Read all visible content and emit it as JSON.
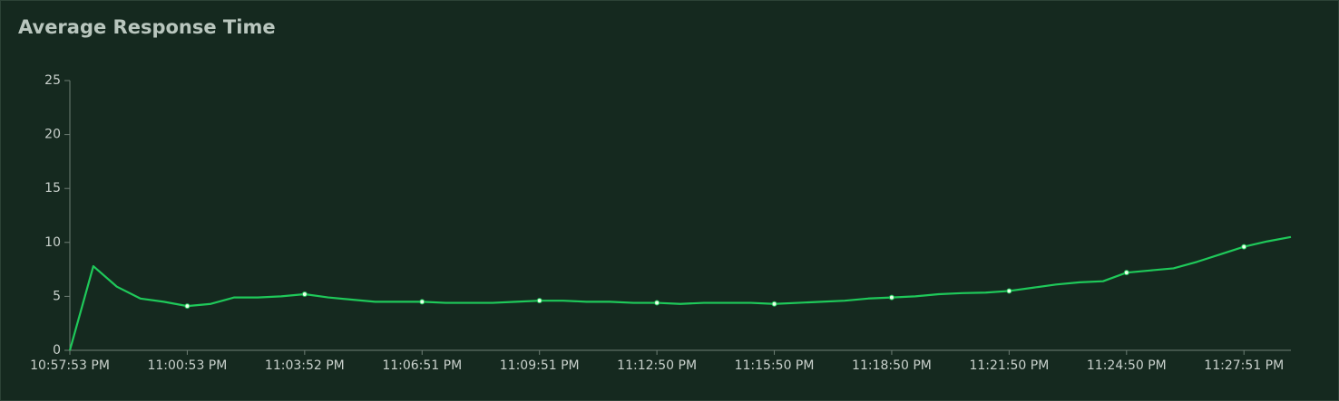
{
  "chart_data": {
    "type": "line",
    "title": "Average Response Time",
    "categories": [
      "10:57:53 PM",
      null,
      null,
      null,
      null,
      "11:00:53 PM",
      null,
      null,
      null,
      null,
      "11:03:52 PM",
      null,
      null,
      null,
      null,
      "11:06:51 PM",
      null,
      null,
      null,
      null,
      "11:09:51 PM",
      null,
      null,
      null,
      null,
      "11:12:50 PM",
      null,
      null,
      null,
      null,
      "11:15:50 PM",
      null,
      null,
      null,
      null,
      "11:18:50 PM",
      null,
      null,
      null,
      null,
      "11:21:50 PM",
      null,
      null,
      null,
      null,
      "11:24:50 PM",
      null,
      null,
      null,
      null,
      "11:27:51 PM",
      null,
      null
    ],
    "series": [
      {
        "color": "#1fc95a",
        "values": [
          0,
          7.8,
          5.9,
          4.8,
          4.5,
          4.1,
          4.3,
          4.9,
          4.9,
          5.0,
          5.2,
          4.9,
          4.7,
          4.5,
          4.5,
          4.5,
          4.4,
          4.4,
          4.4,
          4.5,
          4.6,
          4.6,
          4.5,
          4.5,
          4.4,
          4.4,
          4.3,
          4.4,
          4.4,
          4.4,
          4.3,
          4.4,
          4.5,
          4.6,
          4.8,
          4.9,
          5.0,
          5.2,
          5.3,
          5.35,
          5.5,
          5.8,
          6.1,
          6.3,
          6.4,
          7.2,
          7.4,
          7.6,
          8.2,
          8.9,
          9.6,
          10.1,
          10.5
        ]
      }
    ],
    "ylim": [
      0,
      25
    ],
    "yticks": [
      0,
      5,
      10,
      15,
      20,
      25
    ]
  }
}
